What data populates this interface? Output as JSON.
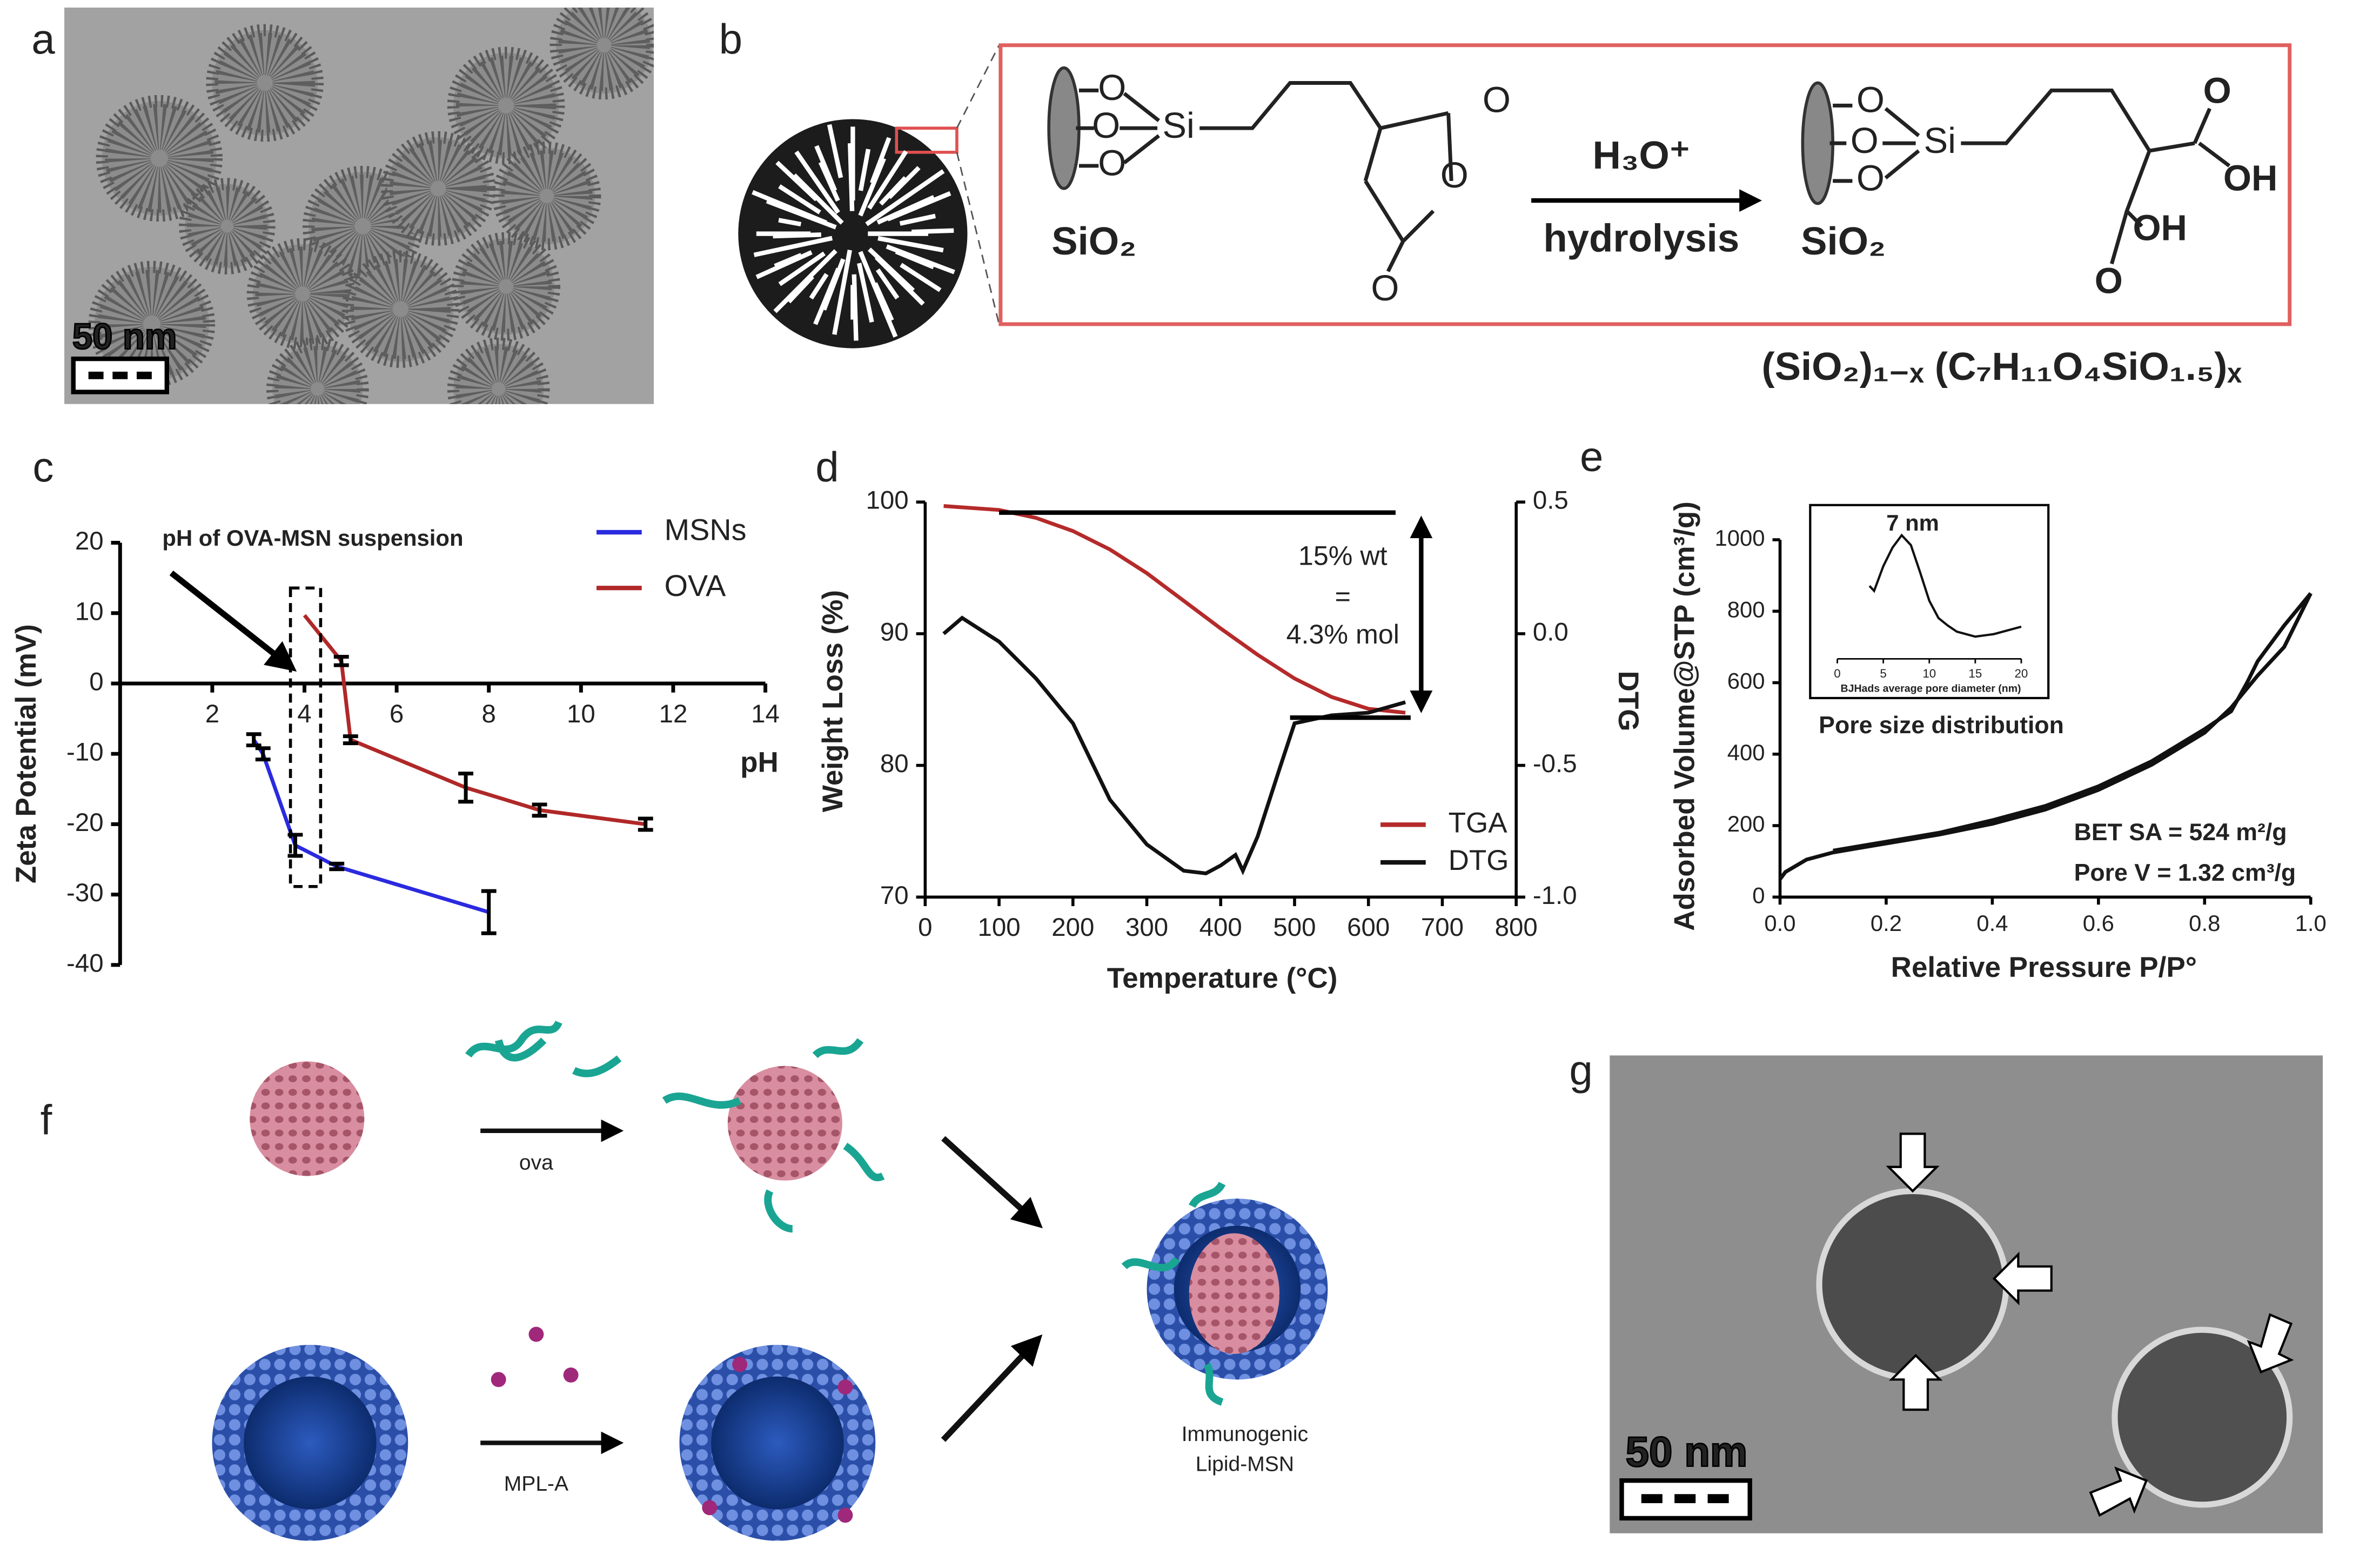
{
  "panels": [
    "a",
    "b",
    "c",
    "d",
    "e",
    "f",
    "g"
  ],
  "panel_a": {
    "scale_bar": "50 nm"
  },
  "panel_b": {
    "atoms_left": [
      "O",
      "O",
      "O",
      "Si",
      "O",
      "O",
      "O"
    ],
    "support_left": "SiO₂",
    "reagent": "H₃O⁺",
    "condition": "hydrolysis",
    "atoms_right": [
      "O",
      "O",
      "O",
      "Si",
      "O",
      "OH",
      "OH",
      "O"
    ],
    "support_right": "SiO₂",
    "formula": "(SiO₂)₁₋ₓ (C₇H₁₁O₄SiO₁.₅)ₓ"
  },
  "chart_data": [
    {
      "type": "line",
      "xlabel": "pH",
      "ylabel": "Zeta Potential (mV)",
      "xlim": [
        0,
        14
      ],
      "xticks": [
        2,
        4,
        6,
        8,
        10,
        12,
        14
      ],
      "ylim": [
        -40,
        20
      ],
      "yticks": [
        20,
        10,
        0,
        -10,
        -20,
        -30,
        -40
      ],
      "legend": "upper right",
      "annotations": [
        "pH of OVA-MSN suspension"
      ],
      "series": [
        {
          "name": "MSNs",
          "color": "#2a2ae0",
          "x": [
            2.9,
            3.1,
            3.8,
            4.7,
            8.0
          ],
          "values": [
            -8,
            -10,
            -23,
            -26,
            -32.5
          ],
          "errors": [
            0.8,
            0.8,
            1.5,
            0.4,
            3
          ]
        },
        {
          "name": "OVA",
          "color": "#b02828",
          "x": [
            4.0,
            4.8,
            5.0,
            7.5,
            9.1,
            11.4
          ],
          "values": [
            9.7,
            3.2,
            -8,
            -14.8,
            -18,
            -20
          ],
          "errors": [
            0,
            0.6,
            0.5,
            2,
            0.8,
            0.8
          ]
        }
      ]
    },
    {
      "type": "line",
      "xlabel": "Temperature (°C)",
      "ylabel": "Weight Loss (%)",
      "y2label": "DTG",
      "xlim": [
        0,
        800
      ],
      "xticks": [
        0,
        100,
        200,
        300,
        400,
        500,
        600,
        700,
        800
      ],
      "ylim": [
        70,
        100
      ],
      "yticks": [
        70,
        80,
        90,
        100
      ],
      "y2lim": [
        -1,
        0.5
      ],
      "y2ticks": [
        {
          "value": -1,
          "label": "-1.0"
        },
        -0.5,
        {
          "value": 0,
          "label": "0.0"
        },
        0.5
      ],
      "legend": "lower right",
      "annotations": [
        "15% wt",
        "=",
        "4.3% mol"
      ],
      "series": [
        {
          "name": "TGA",
          "color": "#b52a2a",
          "x": [
            25,
            100,
            150,
            200,
            250,
            300,
            350,
            400,
            450,
            500,
            550,
            600,
            650
          ],
          "values": [
            99.7,
            99.4,
            98.8,
            97.8,
            96.4,
            94.6,
            92.5,
            90.4,
            88.4,
            86.6,
            85.2,
            84.3,
            84.0
          ]
        },
        {
          "name": "DTG",
          "color": "#111111",
          "axis": "y2",
          "x": [
            25,
            50,
            100,
            150,
            200,
            250,
            300,
            350,
            380,
            400,
            420,
            430,
            450,
            480,
            500,
            550,
            600,
            650
          ],
          "values": [
            0.0,
            0.06,
            -0.03,
            -0.17,
            -0.34,
            -0.63,
            -0.8,
            -0.9,
            -0.91,
            -0.88,
            -0.84,
            -0.9,
            -0.77,
            -0.51,
            -0.34,
            -0.31,
            -0.3,
            -0.26
          ]
        }
      ]
    },
    {
      "type": "line",
      "xlabel": "Relative Pressure P/P°",
      "ylabel": "Adsorbed Volume@STP (cm³/g)",
      "xlim": [
        0,
        1
      ],
      "xticks": [
        {
          "value": 0,
          "label": "0.0"
        },
        0.2,
        0.4,
        0.6,
        0.8,
        {
          "value": 1,
          "label": "1.0"
        }
      ],
      "ylim": [
        0,
        1000
      ],
      "yticks": [
        0,
        200,
        400,
        600,
        800,
        1000
      ],
      "annotations": [
        "BET SA = 524 m²/g",
        "Pore V = 1.32 cm³/g"
      ],
      "series": [
        {
          "color": "#111111",
          "x": [
            0,
            0.01,
            0.05,
            0.1,
            0.2,
            0.3,
            0.4,
            0.5,
            0.6,
            0.7,
            0.8,
            0.85,
            0.9,
            0.95,
            1.0
          ],
          "values": [
            50,
            70,
            105,
            125,
            150,
            175,
            205,
            245,
            300,
            370,
            460,
            530,
            620,
            700,
            850
          ]
        },
        {
          "color": "#111111",
          "x": [
            1.0,
            0.95,
            0.9,
            0.88,
            0.85,
            0.8,
            0.7,
            0.6,
            0.5,
            0.4,
            0.3,
            0.2,
            0.1
          ],
          "values": [
            850,
            760,
            660,
            600,
            520,
            470,
            380,
            310,
            255,
            215,
            180,
            155,
            130
          ]
        }
      ]
    },
    {
      "type": "line",
      "title": "Pore size distribution",
      "xlabel": "BJHads average pore diameter (nm)",
      "xlim": [
        0,
        20
      ],
      "xticks": [
        0,
        5,
        10,
        15,
        20
      ],
      "ylim": [
        0,
        1
      ],
      "annotations": [
        "7 nm"
      ],
      "series": [
        {
          "color": "#111111",
          "x": [
            3.5,
            4,
            5,
            6,
            7,
            8,
            9,
            10,
            11,
            12,
            13,
            15,
            17,
            20
          ],
          "values": [
            0.59,
            0.55,
            0.75,
            0.9,
            1.0,
            0.92,
            0.7,
            0.47,
            0.33,
            0.27,
            0.22,
            0.18,
            0.2,
            0.26
          ]
        }
      ]
    }
  ],
  "panel_f": {
    "step_1": "ova",
    "step_2": "MPL-A",
    "product": [
      "Immunogenic",
      "Lipid-MSN"
    ]
  },
  "panel_g": {
    "scale_bar": "50 nm"
  }
}
